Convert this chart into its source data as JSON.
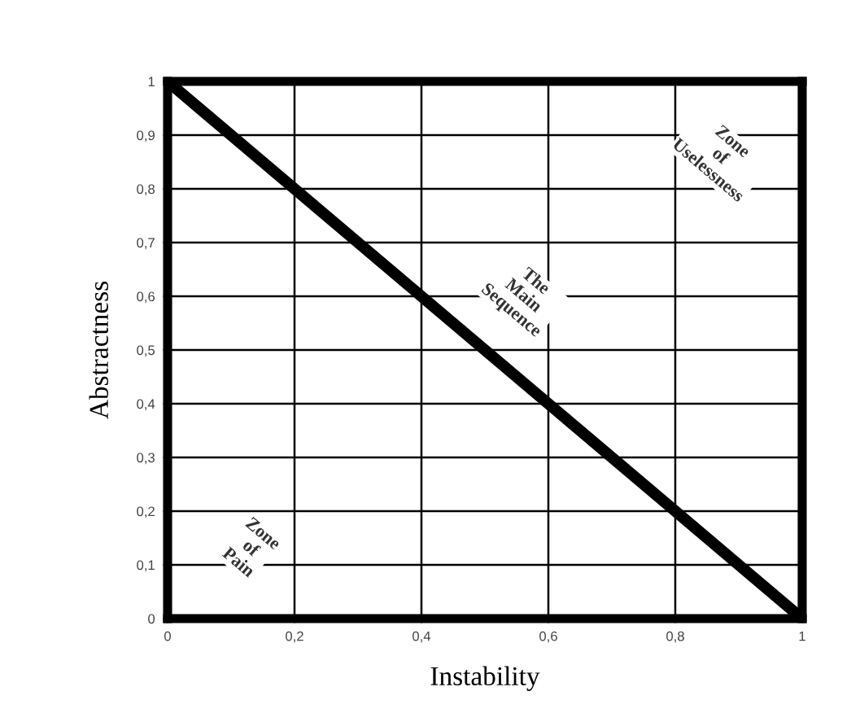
{
  "chart_data": {
    "type": "line",
    "xlabel": "Instability",
    "ylabel": "Abstractness",
    "x": [
      0,
      1
    ],
    "series": [
      {
        "color": "#000000",
        "values": [
          1,
          0
        ]
      }
    ],
    "xlim": [
      0,
      1
    ],
    "ylim": [
      0,
      1
    ],
    "xticks": [
      0,
      {
        "value": 0.2,
        "label": "0,2"
      },
      {
        "value": 0.4,
        "label": "0,4"
      },
      {
        "value": 0.6,
        "label": "0,6"
      },
      {
        "value": 0.8,
        "label": "0,8"
      },
      1
    ],
    "yticks": [
      0,
      {
        "value": 0.1,
        "label": "0,1"
      },
      {
        "value": 0.2,
        "label": "0,2"
      },
      {
        "value": 0.3,
        "label": "0,3"
      },
      {
        "value": 0.4,
        "label": "0,4"
      },
      {
        "value": 0.5,
        "label": "0,5"
      },
      {
        "value": 0.6,
        "label": "0,6"
      },
      {
        "value": 0.7,
        "label": "0,7"
      },
      {
        "value": 0.8,
        "label": "0,8"
      },
      {
        "value": 0.9,
        "label": "0,9"
      },
      1
    ],
    "grid": true,
    "marker": "none",
    "line_style": "solid",
    "legend": false,
    "annotations": [
      "The Main Sequence",
      "Zone of Uselessness",
      "Zone of Pain"
    ]
  }
}
